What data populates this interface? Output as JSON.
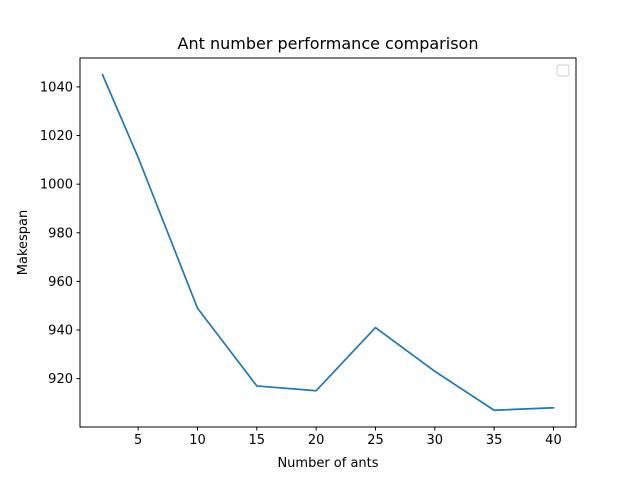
{
  "chart_data": {
    "type": "line",
    "title": "Ant number performance comparison",
    "xlabel": "Number of ants",
    "ylabel": "Makespan",
    "x": [
      2,
      5,
      10,
      15,
      20,
      25,
      30,
      35,
      40
    ],
    "series": [
      {
        "values": [
          1045,
          1011,
          949,
          917,
          915,
          941,
          923,
          907,
          908
        ],
        "color": "#1f77b4"
      }
    ],
    "xlim": [
      0.1,
      41.9
    ],
    "ylim": [
      900.1,
      1051.9
    ],
    "xticks": [
      5,
      10,
      15,
      20,
      25,
      30,
      35,
      40
    ],
    "yticks": [
      920,
      940,
      960,
      980,
      1000,
      1020,
      1040
    ],
    "grid": false,
    "legend": "top-right",
    "legend_entries": []
  }
}
